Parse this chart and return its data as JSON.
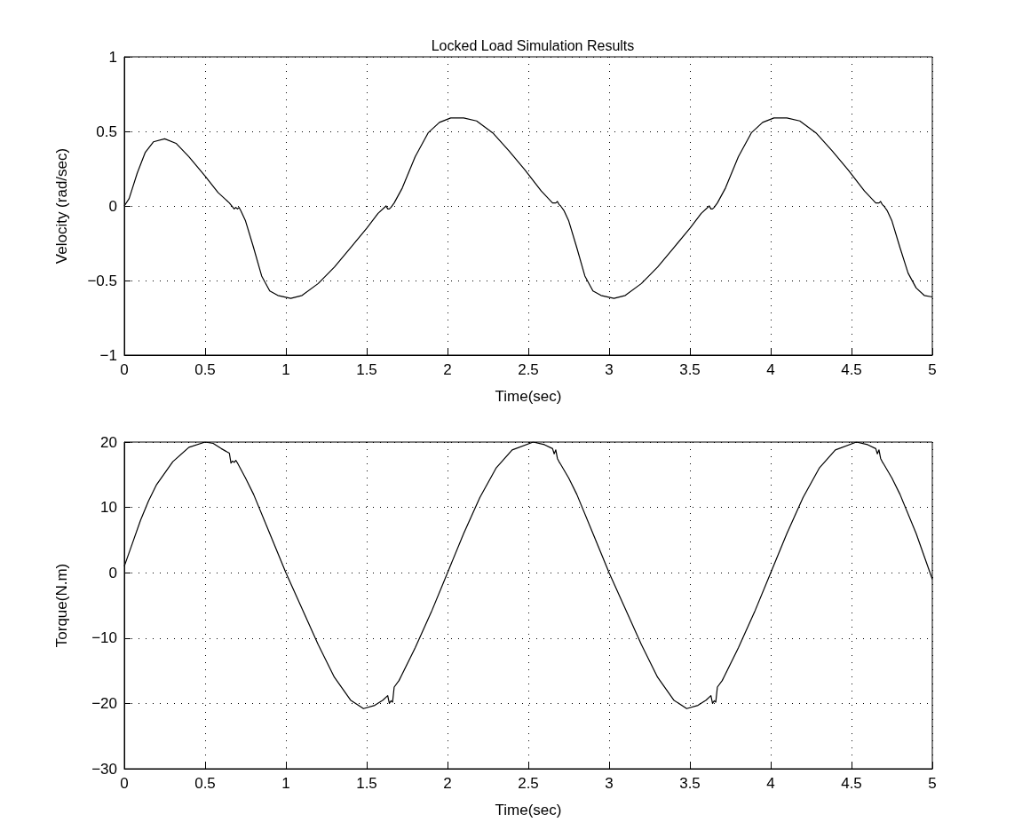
{
  "chart_data": [
    {
      "type": "line",
      "title": "Locked Load Simulation Results",
      "xlabel": "Time(sec)",
      "ylabel": "Velocity (rad/sec)",
      "series": [
        {
          "color": "#000000",
          "x": [
            0,
            0.03,
            0.08,
            0.13,
            0.18,
            0.25,
            0.32,
            0.4,
            0.5,
            0.58,
            0.65,
            0.68,
            0.69,
            0.7,
            0.71,
            0.72,
            0.75,
            0.8,
            0.85,
            0.9,
            0.95,
            1.03,
            1.1,
            1.2,
            1.3,
            1.4,
            1.5,
            1.57,
            1.62,
            1.63,
            1.64,
            1.65,
            1.67,
            1.72,
            1.8,
            1.88,
            1.95,
            2.02,
            2.1,
            2.18,
            2.28,
            2.38,
            2.48,
            2.58,
            2.65,
            2.67,
            2.68,
            2.69,
            2.7,
            2.72,
            2.75,
            2.8,
            2.85,
            2.9,
            2.95,
            3.03,
            3.1,
            3.2,
            3.3,
            3.4,
            3.5,
            3.57,
            3.62,
            3.63,
            3.64,
            3.65,
            3.67,
            3.72,
            3.8,
            3.88,
            3.95,
            4.02,
            4.1,
            4.18,
            4.28,
            4.38,
            4.48,
            4.58,
            4.65,
            4.67,
            4.68,
            4.69,
            4.7,
            4.72,
            4.75,
            4.8,
            4.85,
            4.9,
            4.95,
            5
          ],
          "values": [
            0,
            0.05,
            0.22,
            0.36,
            0.43,
            0.45,
            0.42,
            0.33,
            0.2,
            0.09,
            0.02,
            -0.02,
            -0.01,
            -0.02,
            -0.01,
            -0.03,
            -0.1,
            -0.28,
            -0.47,
            -0.57,
            -0.6,
            -0.62,
            -0.6,
            -0.52,
            -0.41,
            -0.28,
            -0.15,
            -0.05,
            0,
            -0.02,
            -0.02,
            -0.01,
            0.02,
            0.12,
            0.33,
            0.49,
            0.56,
            0.59,
            0.59,
            0.57,
            0.49,
            0.37,
            0.24,
            0.1,
            0.02,
            0.02,
            0.03,
            0.01,
            0,
            -0.03,
            -0.1,
            -0.28,
            -0.47,
            -0.57,
            -0.6,
            -0.62,
            -0.6,
            -0.52,
            -0.41,
            -0.28,
            -0.15,
            -0.05,
            0,
            -0.02,
            -0.02,
            -0.01,
            0.02,
            0.12,
            0.33,
            0.49,
            0.56,
            0.59,
            0.59,
            0.57,
            0.49,
            0.37,
            0.24,
            0.1,
            0.02,
            0.02,
            0.03,
            0.01,
            0,
            -0.03,
            -0.1,
            -0.28,
            -0.45,
            -0.55,
            -0.6,
            -0.61
          ]
        }
      ],
      "xlim": [
        0,
        5
      ],
      "xticks": [
        0,
        0.5,
        1,
        1.5,
        2,
        2.5,
        3,
        3.5,
        4,
        4.5,
        5
      ],
      "ylim": [
        -1,
        1
      ],
      "yticks": [
        {
          "value": -1,
          "label": "−1"
        },
        {
          "value": -0.5,
          "label": "−0.5"
        },
        0,
        0.5,
        1
      ],
      "grid": true,
      "line_style": "solid",
      "marker": "none"
    },
    {
      "type": "line",
      "xlabel": "Time(sec)",
      "ylabel": "Torque(N.m)",
      "series": [
        {
          "color": "#000000",
          "x": [
            0,
            0.05,
            0.1,
            0.15,
            0.2,
            0.3,
            0.4,
            0.5,
            0.55,
            0.6,
            0.65,
            0.66,
            0.67,
            0.68,
            0.69,
            0.7,
            0.75,
            0.8,
            0.9,
            1.0,
            1.1,
            1.2,
            1.3,
            1.4,
            1.48,
            1.55,
            1.6,
            1.63,
            1.64,
            1.65,
            1.66,
            1.67,
            1.7,
            1.8,
            1.9,
            2.0,
            2.1,
            2.2,
            2.3,
            2.4,
            2.53,
            2.6,
            2.65,
            2.66,
            2.67,
            2.68,
            2.69,
            2.7,
            2.75,
            2.8,
            2.9,
            3.0,
            3.1,
            3.2,
            3.3,
            3.4,
            3.48,
            3.55,
            3.6,
            3.63,
            3.64,
            3.65,
            3.66,
            3.67,
            3.7,
            3.8,
            3.9,
            4.0,
            4.1,
            4.2,
            4.3,
            4.4,
            4.53,
            4.6,
            4.65,
            4.66,
            4.67,
            4.68,
            4.69,
            4.7,
            4.75,
            4.8,
            4.9,
            5.0
          ],
          "values": [
            1,
            4.5,
            8,
            11,
            13.5,
            17,
            19.2,
            20,
            19.8,
            19,
            18.3,
            16.8,
            17.1,
            16.9,
            17.2,
            16.8,
            14.5,
            12,
            6,
            0,
            -5.5,
            -11,
            -16,
            -19.5,
            -20.8,
            -20.3,
            -19.5,
            -18.8,
            -20,
            -19.6,
            -19.8,
            -17.5,
            -16.5,
            -11.5,
            -6,
            0,
            6,
            11.5,
            16,
            18.8,
            20,
            19.6,
            19,
            18.2,
            18.8,
            17.5,
            17,
            16.6,
            14.5,
            12,
            6,
            0,
            -5.5,
            -11,
            -16,
            -19.5,
            -20.8,
            -20.3,
            -19.5,
            -18.8,
            -20,
            -19.6,
            -19.8,
            -17.5,
            -16.5,
            -11.5,
            -6,
            0,
            6,
            11.5,
            16,
            18.8,
            20,
            19.6,
            19,
            18.2,
            18.8,
            17.5,
            17,
            16.6,
            14.5,
            12,
            6,
            -1
          ]
        }
      ],
      "xlim": [
        0,
        5
      ],
      "xticks": [
        0,
        0.5,
        1,
        1.5,
        2,
        2.5,
        3,
        3.5,
        4,
        4.5,
        5
      ],
      "ylim": [
        -30,
        20
      ],
      "yticks": [
        {
          "value": -30,
          "label": "−30"
        },
        {
          "value": -20,
          "label": "−20"
        },
        {
          "value": -10,
          "label": "−10"
        },
        0,
        10,
        20
      ],
      "grid": true,
      "line_style": "solid",
      "marker": "none"
    }
  ]
}
